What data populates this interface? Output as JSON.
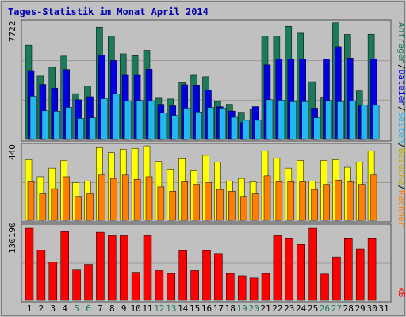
{
  "title": "Tages-Statistik im Monat April 2014",
  "colors": {
    "anfragen": "#1a7a5a",
    "dateien": "#0000e0",
    "seiten": "#22b8f0",
    "besuche": "#ffff00",
    "rechner": "#ff8000",
    "kb": "#ff0000",
    "weekday_label": "#000000",
    "weekend_label": "#1a7a5a"
  },
  "legend": {
    "anfragen": "Anfragen",
    "dateien": "Dateien",
    "seiten": "Seiten",
    "besuche": "Besuche",
    "rechner": "Rechner",
    "kb": "kB",
    "sep": "/"
  },
  "chart_data": {
    "type": "bar",
    "categories": [
      "1",
      "2",
      "3",
      "4",
      "5",
      "6",
      "7",
      "8",
      "9",
      "10",
      "11",
      "12",
      "13",
      "14",
      "15",
      "16",
      "17",
      "18",
      "19",
      "20",
      "21",
      "22",
      "23",
      "24",
      "25",
      "26",
      "27",
      "28",
      "29",
      "30",
      "31"
    ],
    "weekend_days": [
      5,
      6,
      12,
      13,
      19,
      20,
      26,
      27
    ],
    "panels": [
      {
        "ymax_label": "7722",
        "ymax": 7722,
        "series": [
          {
            "name": "Anfragen",
            "values": [
              6160,
              4150,
              4720,
              5450,
              3000,
              3500,
              7350,
              6760,
              5600,
              5480,
              5830,
              2700,
              2650,
              3730,
              4200,
              4100,
              2490,
              2300,
              1780,
              1950,
              6760,
              6760,
              7400,
              6950,
              3780,
              2720,
              7630,
              6870,
              3180,
              6880,
              0
            ]
          },
          {
            "name": "Dateien",
            "values": [
              4510,
              3600,
              3360,
              4580,
              2600,
              2800,
              5500,
              5160,
              4200,
              4200,
              4600,
              2300,
              2200,
              3580,
              3560,
              3250,
              2140,
              1860,
              1100,
              2150,
              4880,
              5250,
              5250,
              5250,
              2050,
              5250,
              6070,
              5320,
              2200,
              5250,
              0
            ]
          },
          {
            "name": "Seiten",
            "values": [
              2830,
              1880,
              1850,
              2100,
              1380,
              1420,
              2670,
              2970,
              2500,
              2550,
              2500,
              1730,
              1580,
              2050,
              1800,
              2100,
              2050,
              1450,
              1250,
              1250,
              2600,
              2570,
              2470,
              2470,
              1420,
              2550,
              2470,
              2500,
              2260,
              2240,
              0
            ]
          }
        ]
      },
      {
        "ymax_label": "440",
        "ymax": 440,
        "series": [
          {
            "name": "Besuche",
            "values": [
              355,
              255,
              305,
              350,
              220,
              230,
              425,
              395,
              415,
              420,
              435,
              345,
              300,
              360,
              290,
              380,
              340,
              230,
              245,
              225,
              405,
              365,
              305,
              350,
              230,
              350,
              355,
              310,
              340,
              405,
              0
            ]
          },
          {
            "name": "Rechner",
            "values": [
              225,
              155,
              185,
              255,
              140,
              155,
              265,
              245,
              265,
              240,
              255,
              195,
              170,
              225,
              210,
              220,
              180,
              170,
              140,
              155,
              260,
              225,
              225,
              225,
              180,
              210,
              235,
              225,
              210,
              265,
              0
            ]
          }
        ]
      },
      {
        "ymax_label": "130190",
        "ymax": 130190,
        "series": [
          {
            "name": "kB",
            "values": [
              126000,
              88000,
              67000,
              120000,
              53000,
              63000,
              119000,
              113000,
              113000,
              49000,
              113000,
              52000,
              47000,
              87000,
              52000,
              87000,
              82000,
              47000,
              43000,
              39000,
              47000,
              113000,
              109000,
              98000,
              126000,
              46000,
              76000,
              109000,
              90000,
              109000,
              0
            ]
          }
        ]
      }
    ]
  }
}
